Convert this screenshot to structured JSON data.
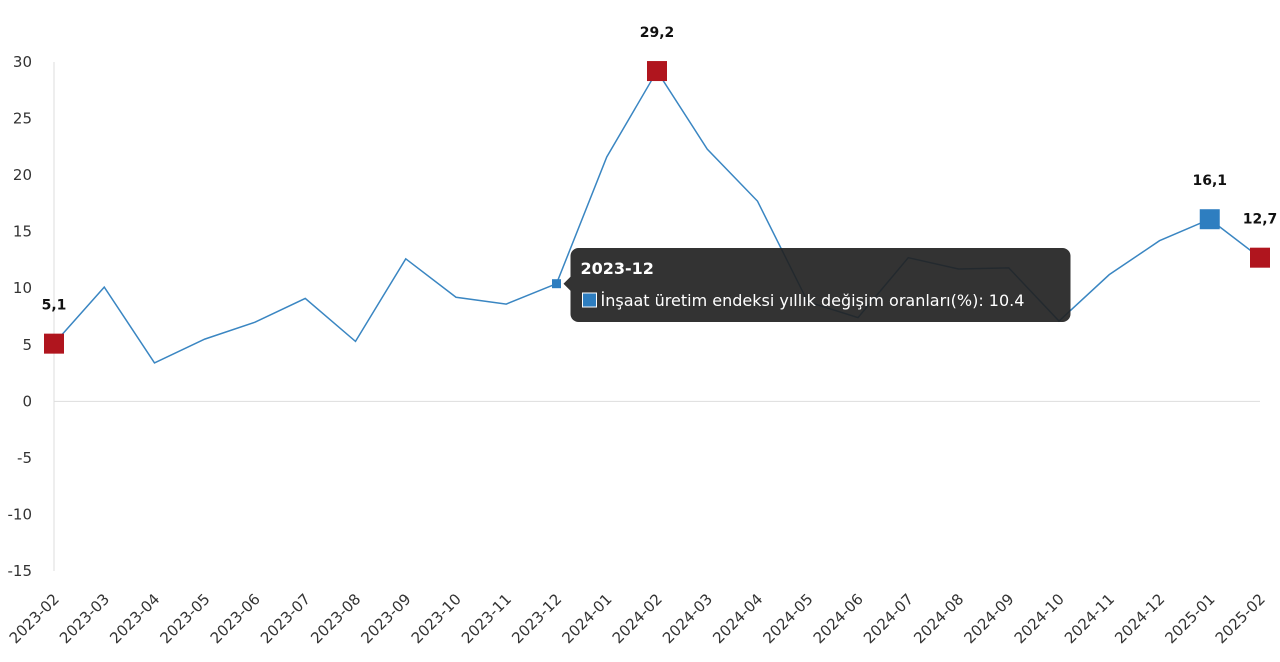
{
  "chart_data": {
    "type": "line",
    "categories": [
      "2023-02",
      "2023-03",
      "2023-04",
      "2023-05",
      "2023-06",
      "2023-07",
      "2023-08",
      "2023-09",
      "2023-10",
      "2023-11",
      "2023-12",
      "2024-01",
      "2024-02",
      "2024-03",
      "2024-04",
      "2024-05",
      "2024-06",
      "2024-07",
      "2024-08",
      "2024-09",
      "2024-10",
      "2024-11",
      "2024-12",
      "2025-01",
      "2025-02"
    ],
    "values": [
      5.1,
      10.1,
      3.4,
      5.5,
      7.0,
      9.1,
      5.3,
      12.6,
      9.2,
      8.6,
      10.4,
      21.6,
      29.2,
      22.3,
      17.7,
      8.8,
      7.4,
      12.7,
      11.7,
      11.8,
      7.1,
      11.2,
      14.2,
      16.1,
      12.7
    ],
    "value_labels": [
      "5,1",
      null,
      null,
      null,
      null,
      null,
      null,
      null,
      null,
      null,
      null,
      null,
      "29,2",
      null,
      null,
      null,
      null,
      null,
      null,
      null,
      null,
      null,
      null,
      "16,1",
      "12,7"
    ],
    "marker_colors": [
      "#b0151e",
      null,
      null,
      null,
      null,
      null,
      null,
      null,
      null,
      null,
      "#2e7ec0",
      null,
      "#b0151e",
      null,
      null,
      null,
      null,
      null,
      null,
      null,
      null,
      null,
      null,
      "#2e7ec0",
      "#b0151e"
    ],
    "color": "#3a86c2",
    "ylim": [
      -15,
      30
    ],
    "yticks": [
      -15,
      -10,
      -5,
      0,
      5,
      10,
      15,
      20,
      25,
      30
    ],
    "tooltip": {
      "title": "2023-12",
      "label": "İnşaat üretim endeksi yıllık değişim oranları(%): 10.4"
    }
  }
}
